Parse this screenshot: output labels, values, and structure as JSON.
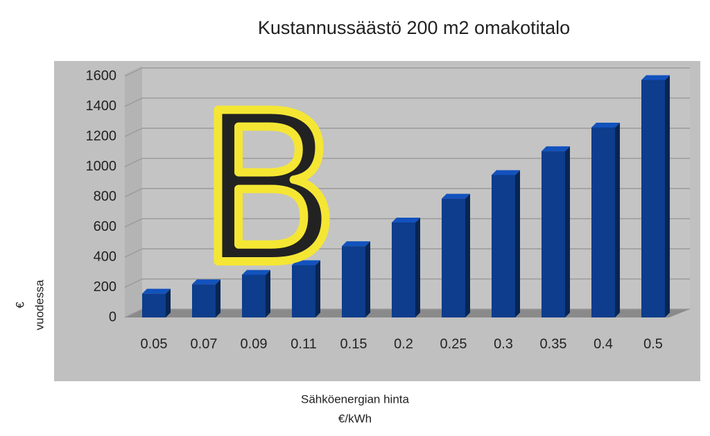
{
  "chart_data": {
    "type": "bar",
    "title": "Kustannussäästö 200 m2 omakotitalo",
    "categories": [
      "0.05",
      "0.07",
      "0.09",
      "0.11",
      "0.15",
      "0.2",
      "0.25",
      "0.3",
      "0.35",
      "0.4",
      "0.5"
    ],
    "values": [
      158,
      220,
      283,
      347,
      473,
      630,
      788,
      945,
      1103,
      1260,
      1575
    ],
    "color": "#0d3d8c",
    "ylim": [
      0,
      1600
    ],
    "yticks": [
      0,
      200,
      400,
      600,
      800,
      1000,
      1200,
      1400,
      1600
    ],
    "grid": true,
    "y_label": [
      "€",
      "vuodessa"
    ],
    "x_label": [
      "Sähköenergian hinta",
      "€/kWh"
    ],
    "annotation": "B"
  }
}
